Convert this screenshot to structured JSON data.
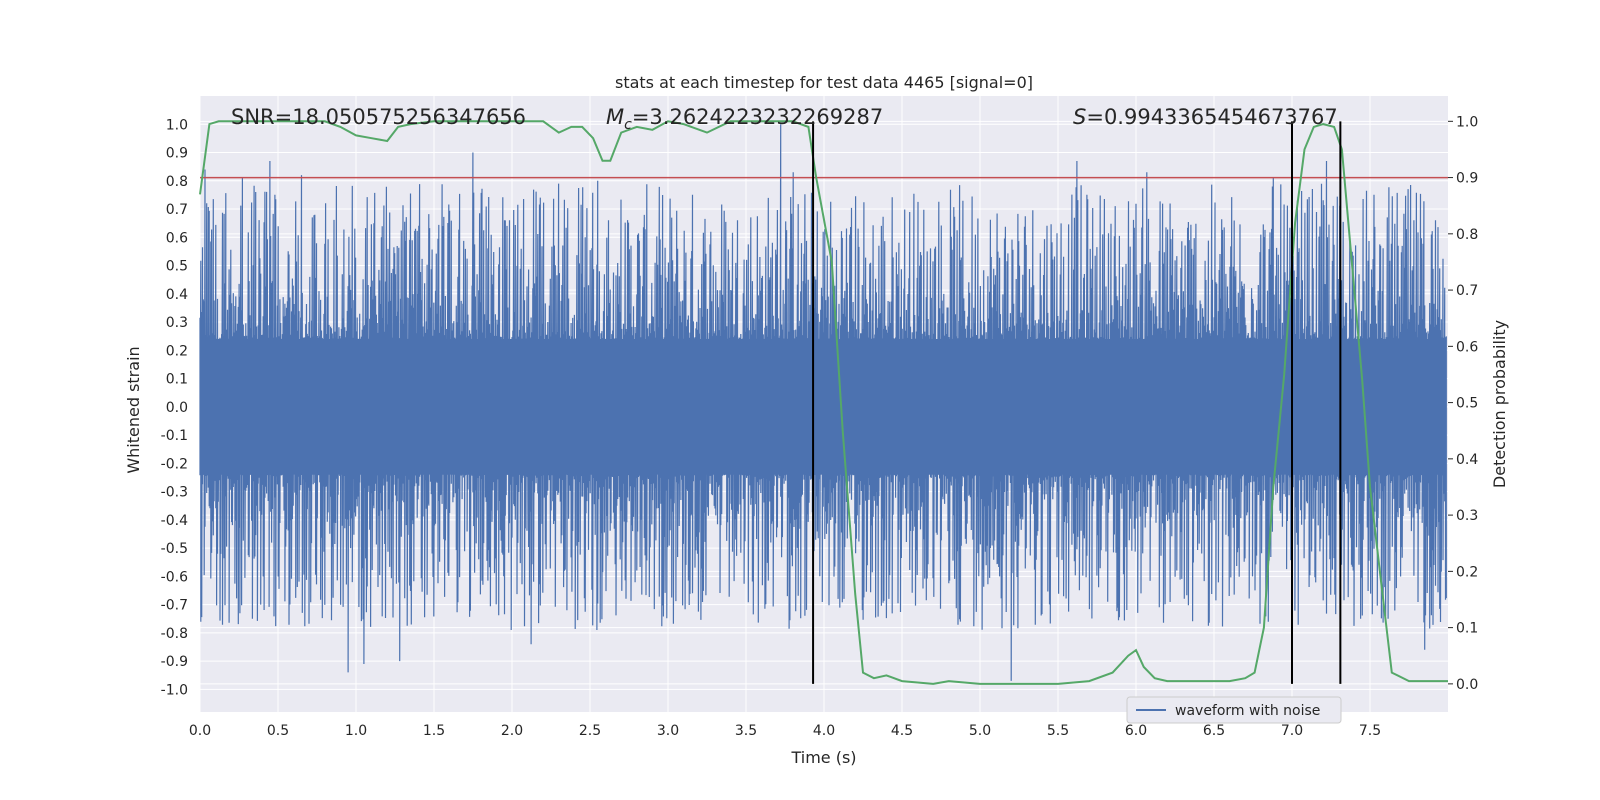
{
  "chart_data": {
    "type": "line",
    "title": "stats at each timestep for test data 4465 [signal=0]",
    "xlabel": "Time (s)",
    "ylabel": "Whitened strain",
    "y2label": "Detection probability",
    "xlim": [
      0.0,
      8.0
    ],
    "ylim": [
      -1.08,
      1.1
    ],
    "y2lim": [
      -0.05,
      1.045
    ],
    "xticks": [
      "0.0",
      "0.5",
      "1.0",
      "1.5",
      "2.0",
      "2.5",
      "3.0",
      "3.5",
      "4.0",
      "4.5",
      "5.0",
      "5.5",
      "6.0",
      "6.5",
      "7.0",
      "7.5"
    ],
    "yticks": [
      "1.0",
      "0.9",
      "0.8",
      "0.7",
      "0.6",
      "0.5",
      "0.4",
      "0.3",
      "0.2",
      "0.1",
      "0.0",
      "-0.1",
      "-0.2",
      "-0.3",
      "-0.4",
      "-0.5",
      "-0.6",
      "-0.7",
      "-0.8",
      "-0.9",
      "-1.0"
    ],
    "y2ticks": [
      "1.0",
      "0.9",
      "0.8",
      "0.7",
      "0.6",
      "0.5",
      "0.4",
      "0.3",
      "0.2",
      "0.1",
      "0.0"
    ],
    "annotations": {
      "snr": "SNR=18.050575256347656",
      "mc_symbol": "M",
      "mc_sub": "c",
      "mc_value": "=3.2624223232269287",
      "s_symbol": "S",
      "s_value": "=0.9943365454673767"
    },
    "threshold": {
      "axis": "y2",
      "value": 0.9,
      "color": "#c44e52"
    },
    "vlines_x": [
      3.93,
      7.0,
      7.31
    ],
    "legend": {
      "entries": [
        "waveform with noise"
      ],
      "position": "lower-right"
    },
    "series": [
      {
        "name": "waveform with noise",
        "axis": "y",
        "color": "#4c72b0",
        "description": "dense whitened noise trace, typical band about ±0.4 with spikes to about ±0.9",
        "peaks": [
          [
            0.03,
            0.84
          ],
          [
            0.27,
            0.81
          ],
          [
            0.45,
            0.87
          ],
          [
            0.65,
            0.82
          ],
          [
            0.95,
            -0.94
          ],
          [
            1.05,
            -0.91
          ],
          [
            1.28,
            -0.9
          ],
          [
            1.75,
            0.9
          ],
          [
            2.12,
            -0.84
          ],
          [
            2.55,
            0.8
          ],
          [
            3.72,
            1.0
          ],
          [
            3.8,
            0.83
          ],
          [
            5.2,
            -0.97
          ],
          [
            5.62,
            0.87
          ],
          [
            6.07,
            0.83
          ],
          [
            6.88,
            0.81
          ],
          [
            7.22,
            0.87
          ],
          [
            7.85,
            -0.86
          ]
        ]
      },
      {
        "name": "detection probability",
        "axis": "y2",
        "color": "#55a868",
        "x": [
          0.0,
          0.06,
          0.12,
          0.3,
          0.8,
          0.9,
          1.0,
          1.1,
          1.2,
          1.27,
          1.35,
          1.5,
          1.6,
          1.8,
          2.0,
          2.2,
          2.3,
          2.38,
          2.45,
          2.52,
          2.58,
          2.63,
          2.7,
          2.8,
          2.9,
          3.0,
          3.1,
          3.25,
          3.4,
          3.6,
          3.8,
          3.9,
          3.95,
          4.05,
          4.12,
          4.2,
          4.25,
          4.32,
          4.4,
          4.5,
          4.7,
          4.8,
          5.0,
          5.2,
          5.5,
          5.7,
          5.85,
          5.95,
          6.0,
          6.05,
          6.12,
          6.2,
          6.4,
          6.6,
          6.7,
          6.76,
          6.82,
          6.88,
          6.95,
          7.02,
          7.08,
          7.14,
          7.2,
          7.27,
          7.32,
          7.38,
          7.45,
          7.5,
          7.58,
          7.64,
          7.75,
          8.0
        ],
        "y": [
          0.87,
          0.995,
          1.0,
          1.0,
          1.0,
          0.99,
          0.975,
          0.97,
          0.965,
          0.99,
          0.995,
          1.0,
          1.0,
          1.0,
          1.0,
          1.0,
          0.98,
          0.99,
          0.99,
          0.97,
          0.93,
          0.93,
          0.98,
          0.99,
          0.985,
          1.0,
          0.995,
          0.98,
          1.0,
          1.0,
          1.0,
          0.99,
          0.9,
          0.75,
          0.45,
          0.16,
          0.02,
          0.01,
          0.015,
          0.005,
          0.0,
          0.005,
          0.0,
          0.0,
          0.0,
          0.005,
          0.02,
          0.05,
          0.06,
          0.03,
          0.01,
          0.005,
          0.005,
          0.005,
          0.01,
          0.02,
          0.1,
          0.35,
          0.55,
          0.82,
          0.95,
          0.99,
          0.995,
          0.99,
          0.95,
          0.76,
          0.54,
          0.35,
          0.16,
          0.02,
          0.005,
          0.005
        ]
      }
    ]
  }
}
